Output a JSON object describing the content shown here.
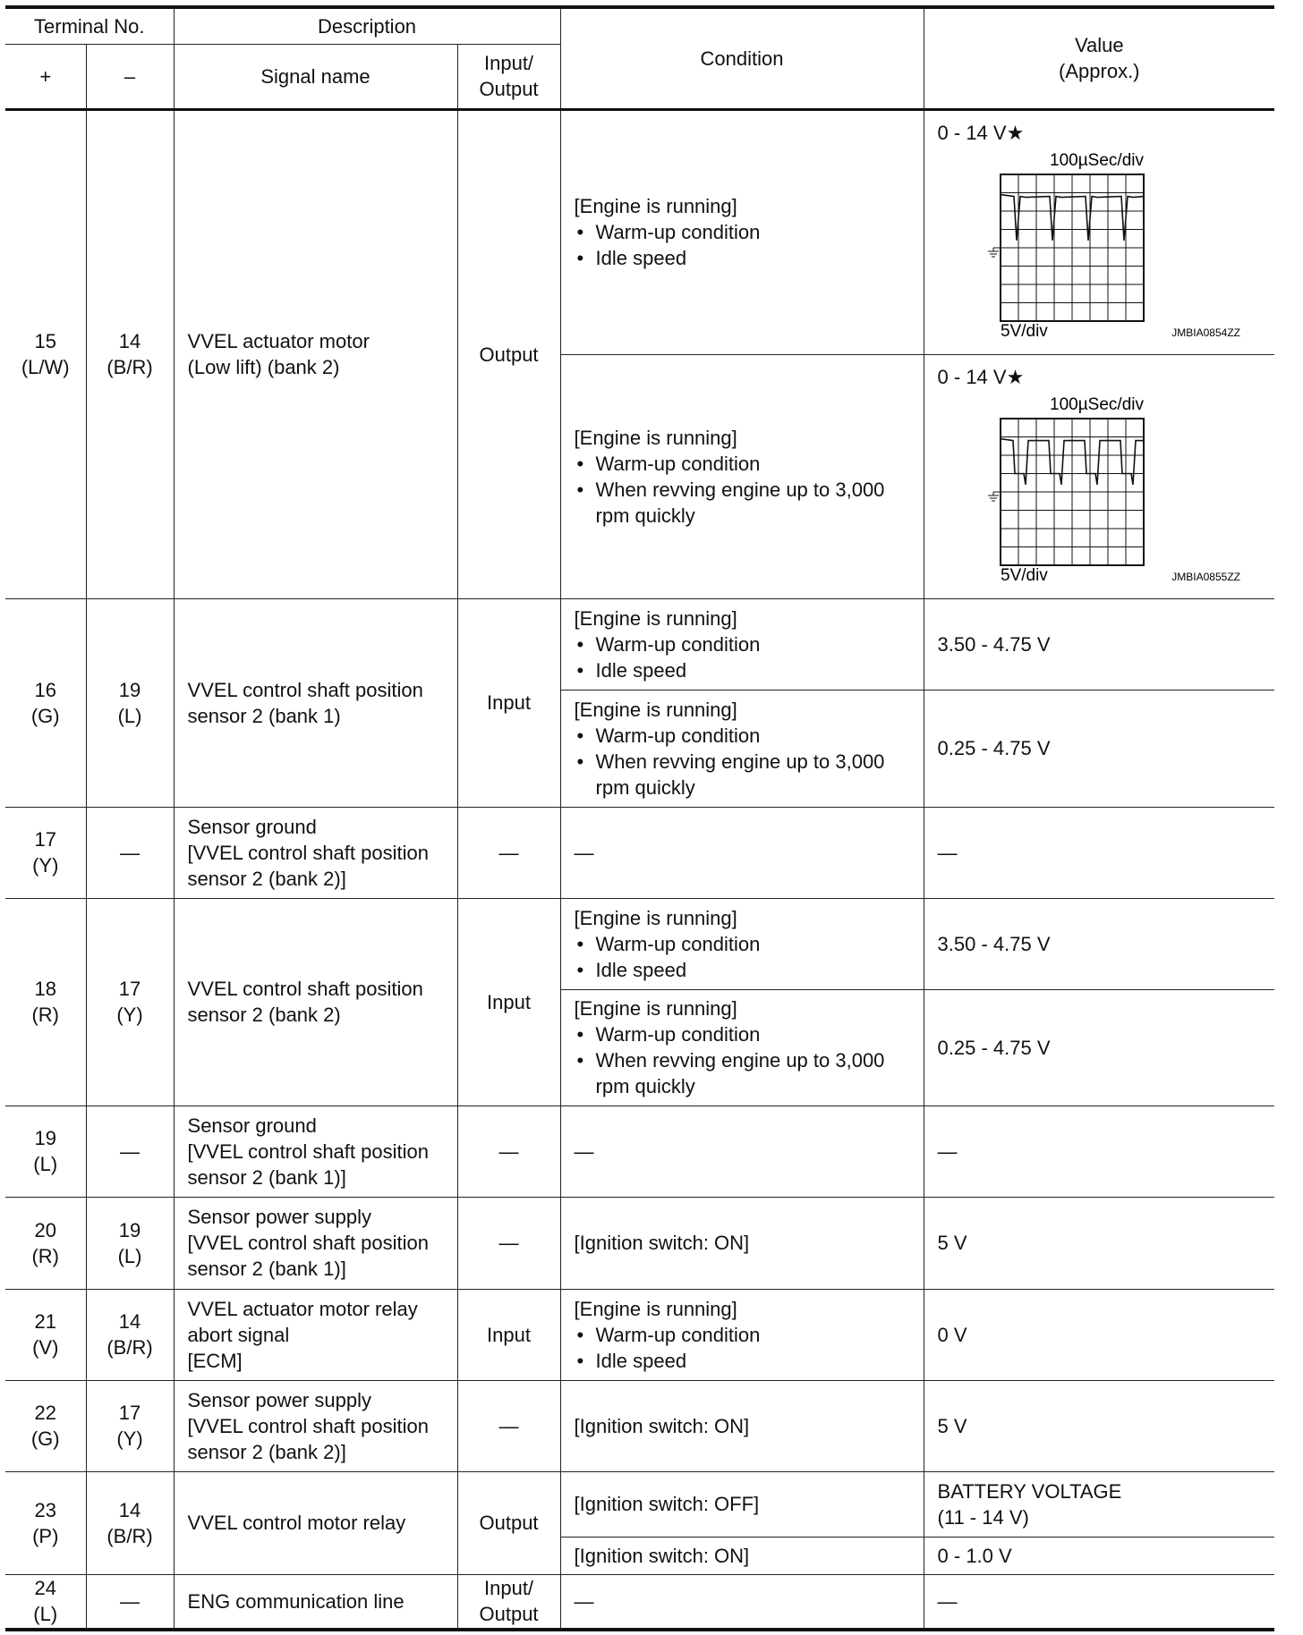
{
  "header": {
    "terminal_no": "Terminal No.",
    "description": "Description",
    "condition": "Condition",
    "value": "Value",
    "value_approx": "(Approx.)",
    "plus": "+",
    "minus": "–",
    "signal_name": "Signal name",
    "io": "Input/",
    "io2": "Output"
  },
  "rows": [
    {
      "plus": "15",
      "plus_wire": "(L/W)",
      "minus": "14",
      "minus_wire": "(B/R)",
      "signal": [
        "VVEL actuator motor",
        "(Low lift) (bank 2)"
      ],
      "io": [
        "Output"
      ],
      "conditions": [
        {
          "head": "[Engine is running]",
          "bullets": [
            "Warm-up condition",
            "Idle speed"
          ],
          "value": [
            "0 - 14 V★"
          ],
          "waveform": {
            "time_div": "100µSec/div",
            "volt_div": "5V/div",
            "code": "JMBIA0854ZZ"
          }
        },
        {
          "head": "[Engine is running]",
          "bullets": [
            "Warm-up condition",
            "When revving engine up to 3,000 rpm quickly"
          ],
          "value": [
            "0 - 14 V★"
          ],
          "waveform": {
            "time_div": "100µSec/div",
            "volt_div": "5V/div",
            "code": "JMBIA0855ZZ"
          }
        }
      ]
    },
    {
      "plus": "16",
      "plus_wire": "(G)",
      "minus": "19",
      "minus_wire": "(L)",
      "signal": [
        "VVEL control shaft position",
        "sensor 2 (bank 1)"
      ],
      "io": [
        "Input"
      ],
      "conditions": [
        {
          "head": "[Engine is running]",
          "bullets": [
            "Warm-up condition",
            "Idle speed"
          ],
          "value": [
            "3.50 - 4.75 V"
          ]
        },
        {
          "head": "[Engine is running]",
          "bullets": [
            "Warm-up condition",
            "When revving engine up to 3,000 rpm quickly"
          ],
          "value": [
            "0.25 - 4.75 V"
          ]
        }
      ]
    },
    {
      "plus": "17",
      "plus_wire": "(Y)",
      "minus": "—",
      "minus_wire": "",
      "signal": [
        "Sensor ground",
        "[VVEL control shaft position",
        "sensor 2 (bank 2)]"
      ],
      "io": [
        "—"
      ],
      "conditions": [
        {
          "head": "—",
          "bullets": [],
          "value": [
            "—"
          ]
        }
      ]
    },
    {
      "plus": "18",
      "plus_wire": "(R)",
      "minus": "17",
      "minus_wire": "(Y)",
      "signal": [
        "VVEL control shaft position",
        "sensor 2 (bank 2)"
      ],
      "io": [
        "Input"
      ],
      "conditions": [
        {
          "head": "[Engine is running]",
          "bullets": [
            "Warm-up condition",
            "Idle speed"
          ],
          "value": [
            "3.50 - 4.75 V"
          ]
        },
        {
          "head": "[Engine is running]",
          "bullets": [
            "Warm-up condition",
            "When revving engine up to 3,000 rpm quickly"
          ],
          "value": [
            "0.25 - 4.75 V"
          ]
        }
      ]
    },
    {
      "plus": "19",
      "plus_wire": "(L)",
      "minus": "—",
      "minus_wire": "",
      "signal": [
        "Sensor ground",
        "[VVEL control shaft position",
        "sensor 2 (bank 1)]"
      ],
      "io": [
        "—"
      ],
      "conditions": [
        {
          "head": "—",
          "bullets": [],
          "value": [
            "—"
          ]
        }
      ]
    },
    {
      "plus": "20",
      "plus_wire": "(R)",
      "minus": "19",
      "minus_wire": "(L)",
      "signal": [
        "Sensor power supply",
        "[VVEL control shaft position",
        "sensor 2 (bank 1)]"
      ],
      "io": [
        "—"
      ],
      "conditions": [
        {
          "head": "[Ignition switch: ON]",
          "bullets": [],
          "value": [
            "5 V"
          ]
        }
      ]
    },
    {
      "plus": "21",
      "plus_wire": "(V)",
      "minus": "14",
      "minus_wire": "(B/R)",
      "signal": [
        "VVEL actuator motor relay",
        "abort signal",
        "[ECM]"
      ],
      "io": [
        "Input"
      ],
      "conditions": [
        {
          "head": "[Engine is running]",
          "bullets": [
            "Warm-up condition",
            "Idle speed"
          ],
          "value": [
            "0 V"
          ]
        }
      ]
    },
    {
      "plus": "22",
      "plus_wire": "(G)",
      "minus": "17",
      "minus_wire": "(Y)",
      "signal": [
        "Sensor power supply",
        "[VVEL control shaft position",
        "sensor 2 (bank 2)]"
      ],
      "io": [
        "—"
      ],
      "conditions": [
        {
          "head": "[Ignition switch: ON]",
          "bullets": [],
          "value": [
            "5 V"
          ]
        }
      ]
    },
    {
      "plus": "23",
      "plus_wire": "(P)",
      "minus": "14",
      "minus_wire": "(B/R)",
      "signal": [
        "VVEL control motor relay"
      ],
      "io": [
        "Output"
      ],
      "conditions": [
        {
          "head": "[Ignition switch: OFF]",
          "bullets": [],
          "value": [
            "BATTERY VOLTAGE",
            "(11 - 14 V)"
          ]
        },
        {
          "head": "[Ignition switch: ON]",
          "bullets": [],
          "value": [
            "0 - 1.0 V"
          ]
        }
      ]
    },
    {
      "plus": "24",
      "plus_wire": "(L)",
      "minus": "—",
      "minus_wire": "",
      "signal": [
        "ENG communication line"
      ],
      "io": [
        "Input/",
        "Output"
      ],
      "conditions": [
        {
          "head": "—",
          "bullets": [],
          "value": [
            "—"
          ]
        }
      ]
    }
  ]
}
